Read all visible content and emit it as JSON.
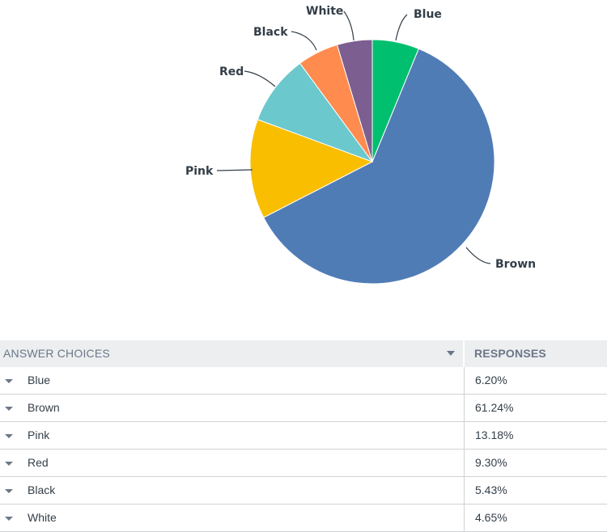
{
  "chart_data": {
    "type": "pie",
    "start_angle_deg": 0,
    "direction": "clockwise",
    "slices": [
      {
        "label": "Blue",
        "value": 6.2,
        "color": "#00bf6f"
      },
      {
        "label": "Brown",
        "value": 61.24,
        "color": "#507cb6"
      },
      {
        "label": "Pink",
        "value": 13.18,
        "color": "#f9be00"
      },
      {
        "label": "Red",
        "value": 9.3,
        "color": "#6bc8cd"
      },
      {
        "label": "Black",
        "value": 5.43,
        "color": "#ff8b4f"
      },
      {
        "label": "White",
        "value": 4.65,
        "color": "#7d5e90"
      }
    ]
  },
  "table": {
    "headers": {
      "choices": "ANSWER CHOICES",
      "responses": "RESPONSES"
    },
    "rows": [
      {
        "choice": "Blue",
        "response": "6.20%"
      },
      {
        "choice": "Brown",
        "response": "61.24%"
      },
      {
        "choice": "Pink",
        "response": "13.18%"
      },
      {
        "choice": "Red",
        "response": "9.30%"
      },
      {
        "choice": "Black",
        "response": "5.43%"
      },
      {
        "choice": "White",
        "response": "4.65%"
      }
    ]
  }
}
